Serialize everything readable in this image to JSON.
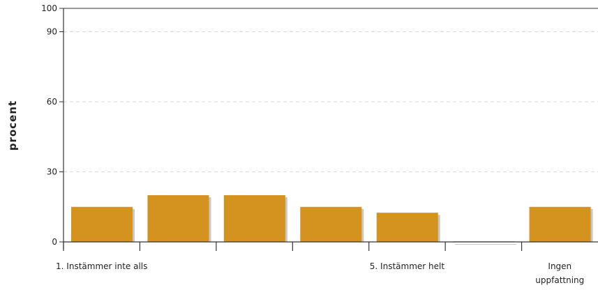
{
  "chart_data": {
    "type": "bar",
    "ylabel": "procent",
    "xlabel": "",
    "title": "",
    "ylim": [
      0,
      100
    ],
    "yticks": [
      0,
      30,
      60,
      90,
      100
    ],
    "grid": true,
    "categories": [
      "1. Instämmer inte alls",
      "",
      "",
      "",
      "5. Instämmer helt",
      "",
      "Ingen uppfattning"
    ],
    "category_lines": [
      [
        "1. Instämmer inte alls"
      ],
      [],
      [],
      [],
      [
        "5. Instämmer helt"
      ],
      [],
      [
        "Ingen",
        "uppfattning"
      ]
    ],
    "values": [
      15,
      20,
      20,
      15,
      12.5,
      0,
      15
    ],
    "colors": {
      "bar": "#d4921e",
      "bar_shadow": "#c8c8c8",
      "grid": "#d9d9d9",
      "axis": "#333333"
    }
  }
}
